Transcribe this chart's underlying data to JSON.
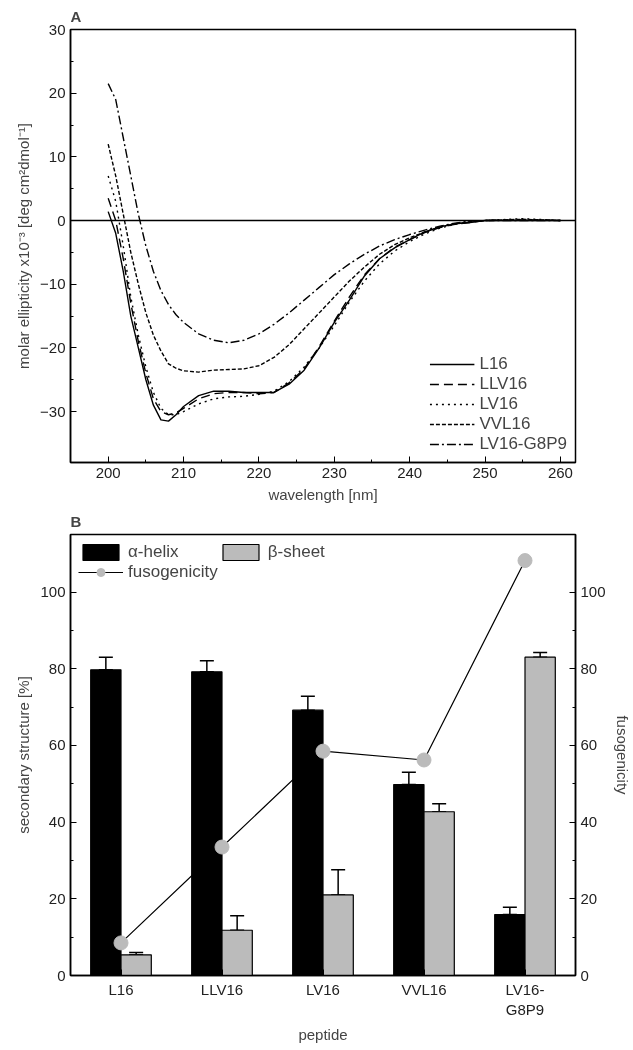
{
  "chart_data": [
    {
      "type": "line",
      "title": "A",
      "xlabel": "wavelength [nm]",
      "ylabel": "molar ellipticity x10⁻³ [deg cm²dmol⁻¹]",
      "x": [
        200,
        201,
        202,
        203,
        204,
        205,
        206,
        207,
        208,
        209,
        210,
        212,
        214,
        216,
        218,
        220,
        222,
        224,
        226,
        228,
        230,
        232,
        234,
        236,
        238,
        240,
        242,
        244,
        246,
        248,
        250,
        255,
        260
      ],
      "series": [
        {
          "name": "L16",
          "color": "#000000",
          "line_style": "solid",
          "values": [
            1.4,
            -2,
            -8,
            -15,
            -20,
            -25,
            -29,
            -31.3,
            -31.5,
            -30.5,
            -29.2,
            -27.5,
            -26.8,
            -26.8,
            -27,
            -27,
            -27,
            -25.7,
            -23.5,
            -20,
            -16,
            -12.5,
            -8.7,
            -6,
            -4.3,
            -3,
            -1.8,
            -1,
            -0.5,
            -0.3,
            0,
            0,
            0
          ]
        },
        {
          "name": "LLV16",
          "color": "#000000",
          "line_style": "dashed",
          "values": [
            3.5,
            0,
            -6,
            -13,
            -19,
            -24,
            -28,
            -30,
            -30.5,
            -30.2,
            -29.5,
            -28,
            -27.2,
            -27,
            -27,
            -27.2,
            -27,
            -25.5,
            -23.3,
            -19.8,
            -15.8,
            -12,
            -8.5,
            -6,
            -4.2,
            -3,
            -1.9,
            -1.1,
            -0.6,
            -0.3,
            0,
            0.1,
            0
          ]
        },
        {
          "name": "LV16",
          "color": "#000000",
          "line_style": "dotted",
          "values": [
            7,
            3,
            -4,
            -12,
            -18,
            -23,
            -27,
            -29.5,
            -30.5,
            -30.5,
            -30,
            -28.8,
            -28,
            -27.7,
            -27.6,
            -27.3,
            -26.8,
            -25.3,
            -23,
            -20,
            -16.5,
            -12.8,
            -9.5,
            -6.8,
            -4.8,
            -3.3,
            -2.1,
            -1.2,
            -0.6,
            -0.2,
            0,
            0.3,
            0
          ]
        },
        {
          "name": "VVL16",
          "color": "#000000",
          "line_style": "short-dashed",
          "values": [
            12,
            7,
            1,
            -5,
            -10,
            -14.5,
            -18,
            -20.5,
            -22.5,
            -23.2,
            -23.6,
            -23.8,
            -23.5,
            -23.4,
            -23.3,
            -22.8,
            -21.5,
            -19.5,
            -17,
            -14.5,
            -12,
            -9.5,
            -7.3,
            -5.3,
            -3.8,
            -2.7,
            -1.8,
            -1,
            -0.5,
            -0.2,
            0,
            0.2,
            0
          ]
        },
        {
          "name": "LV16-G8P9",
          "color": "#000000",
          "line_style": "dashdot",
          "values": [
            21.5,
            19,
            13,
            7,
            1,
            -4,
            -8,
            -11,
            -13.2,
            -14.8,
            -16,
            -17.8,
            -18.8,
            -19.2,
            -18.8,
            -17.8,
            -16.3,
            -14.5,
            -12.5,
            -10.5,
            -8.5,
            -6.8,
            -5.3,
            -4,
            -3,
            -2.2,
            -1.5,
            -0.9,
            -0.4,
            -0.1,
            0,
            0,
            0
          ]
        }
      ],
      "xlim": [
        195,
        262
      ],
      "xticks": [
        200,
        210,
        220,
        230,
        240,
        250,
        260
      ],
      "ylim": [
        -38,
        30
      ],
      "yticks": [
        -30,
        -20,
        -10,
        0,
        10,
        20,
        30
      ],
      "ref_lines": [
        {
          "axis": "y",
          "value": 0,
          "color": "#000000"
        }
      ],
      "legend": "bottom right",
      "grid": false
    },
    {
      "type": "bar",
      "title": "B",
      "xlabel": "peptide",
      "ylabel": "secondary structure [%]",
      "y2label": "fusogenicity",
      "categories": [
        "L16",
        "LLV16",
        "LV16",
        "VVL16",
        "LV16-G8P9"
      ],
      "series": [
        {
          "name": "α-helix",
          "color": "#000000",
          "values": [
            79.7,
            79.2,
            69.2,
            49.8,
            15.9
          ],
          "errors": [
            [
              79.7,
              83
            ],
            [
              79.2,
              82.1
            ],
            [
              69.2,
              72.8
            ],
            [
              49.8,
              53
            ],
            [
              15.9,
              17.8
            ]
          ]
        },
        {
          "name": "β-sheet",
          "color": "#bbbbbb",
          "values": [
            5.4,
            11.8,
            21,
            42.7,
            83
          ],
          "errors": [
            [
              5.4,
              6
            ],
            [
              11.8,
              15.6
            ],
            [
              21,
              27.6
            ],
            [
              42.7,
              44.8
            ],
            [
              83,
              84.2
            ]
          ]
        },
        {
          "name": "fusogenicity",
          "type": "line",
          "axis": "y2",
          "marker": "circle",
          "color": "#bbbbbb",
          "values": [
            8.5,
            33.5,
            58.5,
            56.2,
            108.2
          ]
        }
      ],
      "ylim": [
        0,
        115
      ],
      "yticks": [
        0,
        20,
        40,
        60,
        80,
        100
      ],
      "y2lim": [
        0,
        115
      ],
      "y2ticks": [
        0,
        20,
        40,
        60,
        80,
        100
      ],
      "legend": "top left",
      "grid": false
    }
  ]
}
